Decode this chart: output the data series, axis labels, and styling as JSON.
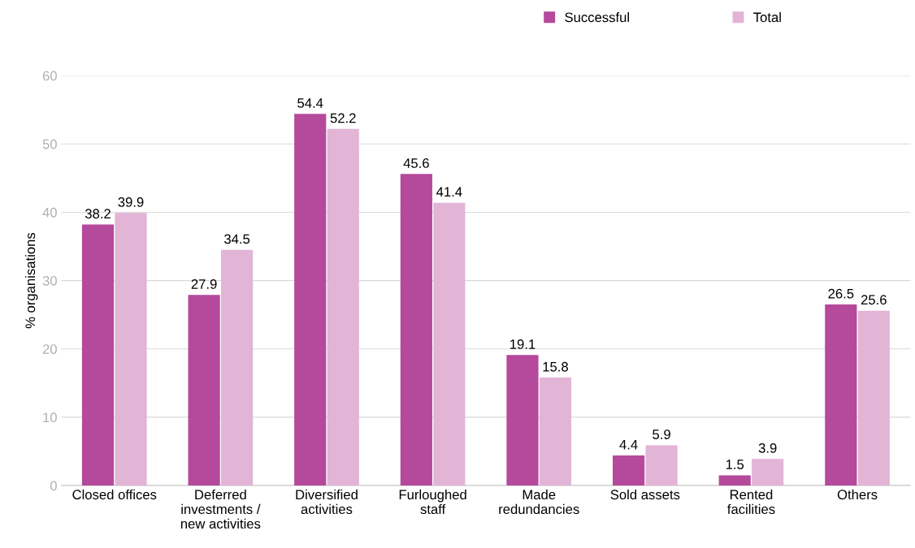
{
  "chart_data": {
    "type": "bar",
    "ylabel": "% organisations",
    "categories": [
      "Closed offices",
      "Deferred\ninvestments /\nnew activities",
      "Diversified\nactivities",
      "Furloughed\nstaff",
      "Made\nredundancies",
      "Sold assets",
      "Rented\nfacilities",
      "Others"
    ],
    "series": [
      {
        "name": "Successful",
        "color": "#b5499b",
        "values": [
          38.2,
          27.9,
          54.4,
          45.6,
          19.1,
          4.4,
          1.5,
          26.5
        ]
      },
      {
        "name": "Total",
        "color": "#e2b4d6",
        "values": [
          39.9,
          34.5,
          52.2,
          41.4,
          15.8,
          5.9,
          3.9,
          25.6
        ]
      }
    ],
    "ylim": [
      0,
      60
    ],
    "yticks": [
      0,
      10,
      20,
      30,
      40,
      50,
      60
    ],
    "grid": "y",
    "legend": "top",
    "data_labels": true
  }
}
